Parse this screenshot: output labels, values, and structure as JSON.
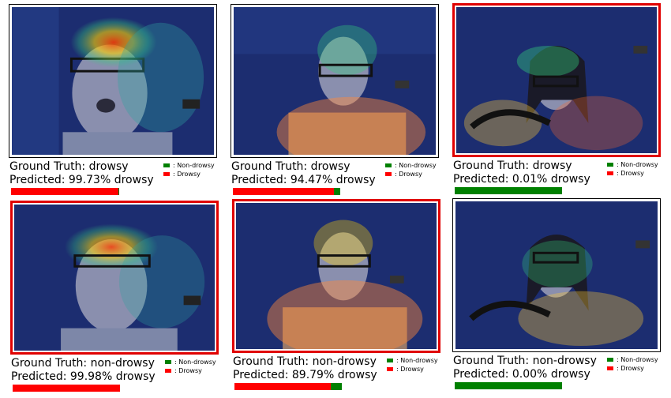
{
  "colors": {
    "drowsy": "#ff0000",
    "non_drowsy": "#008000",
    "misclassified_border": "#e00000"
  },
  "legend": {
    "non_drowsy_label": ": Non-drowsy",
    "drowsy_label": ": Drowsy"
  },
  "panels": [
    {
      "ground_truth": "Ground Truth: drowsy",
      "predicted": "Predicted: 99.73% drowsy",
      "drowsy_fraction": 0.9973,
      "highlighted": false
    },
    {
      "ground_truth": "Ground Truth: drowsy",
      "predicted": "Predicted: 94.47% drowsy",
      "drowsy_fraction": 0.9447,
      "highlighted": false
    },
    {
      "ground_truth": "Ground Truth: drowsy",
      "predicted": "Predicted: 0.01% drowsy",
      "drowsy_fraction": 0.0001,
      "highlighted": true
    },
    {
      "ground_truth": "Ground Truth: non-drowsy",
      "predicted": "Predicted: 99.98% drowsy",
      "drowsy_fraction": 0.9998,
      "highlighted": true
    },
    {
      "ground_truth": "Ground Truth: non-drowsy",
      "predicted": "Predicted: 89.79% drowsy",
      "drowsy_fraction": 0.8979,
      "highlighted": true
    },
    {
      "ground_truth": "Ground Truth: non-drowsy",
      "predicted": "Predicted: 0.00% drowsy",
      "drowsy_fraction": 0.0,
      "highlighted": false
    }
  ]
}
